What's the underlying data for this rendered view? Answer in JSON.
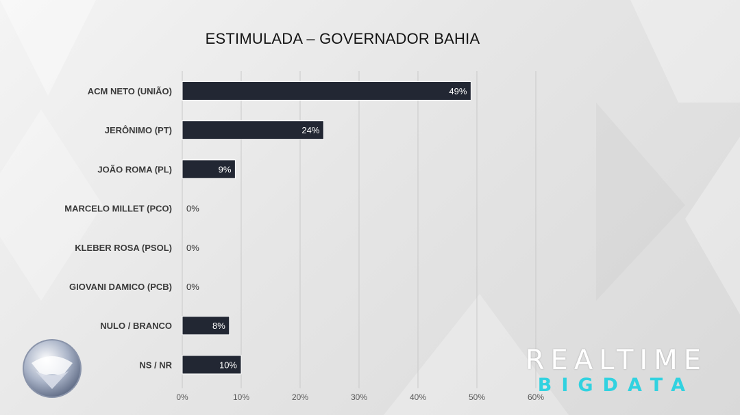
{
  "chart_data": {
    "type": "bar",
    "orientation": "horizontal",
    "title": "ESTIMULADA – GOVERNADOR BAHIA",
    "categories": [
      "ACM NETO (UNIÃO)",
      "JERÔNIMO (PT)",
      "JOÃO ROMA (PL)",
      "MARCELO MILLET (PCO)",
      "KLEBER ROSA (PSOL)",
      "GIOVANI DAMICO (PCB)",
      "NULO / BRANCO",
      "NS / NR"
    ],
    "values": [
      49,
      24,
      9,
      0,
      0,
      0,
      8,
      10
    ],
    "value_labels": [
      "49%",
      "24%",
      "9%",
      "0%",
      "0%",
      "0%",
      "8%",
      "10%"
    ],
    "x_ticks": [
      "0%",
      "10%",
      "20%",
      "30%",
      "40%",
      "50%",
      "60%"
    ],
    "xlim": [
      0,
      60
    ],
    "grid": true,
    "bar_color": "#222733",
    "inside_label_color": "#ffffff",
    "outside_label_color": "#333333"
  },
  "branding": {
    "realtime_top": "REALTIME",
    "realtime_bottom": "BIGDATA",
    "realtime_bottom_color": "#31d2e0",
    "record_logo": "record-tv-logo"
  }
}
